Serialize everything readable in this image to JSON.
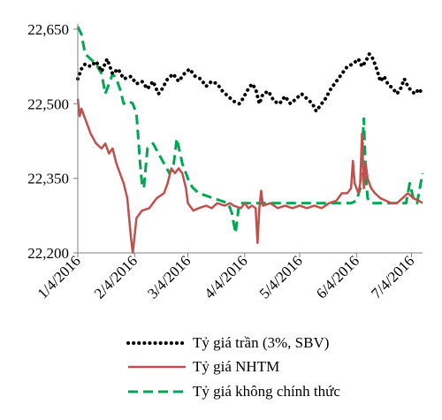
{
  "chart_data": {
    "type": "line",
    "title": "",
    "xlabel": "",
    "ylabel": "",
    "ylim": [
      22200,
      22650
    ],
    "yticks": [
      "22,200",
      "22,350",
      "22,500",
      "22,650"
    ],
    "ytick_values": [
      22200,
      22350,
      22500,
      22650
    ],
    "x_range": [
      "2016-01-04",
      "2016-07-10"
    ],
    "xtick_labels": [
      "1/4/2016",
      "2/4/2016",
      "3/4/2016",
      "4/4/2016",
      "5/4/2016",
      "6/4/2016",
      "7/4/2016"
    ],
    "xtick_dates": [
      "2016-01-04",
      "2016-02-04",
      "2016-03-04",
      "2016-04-04",
      "2016-05-04",
      "2016-06-04",
      "2016-07-04"
    ],
    "grid": false,
    "legend_position": "bottom",
    "series": [
      {
        "name": "Tỷ giá trần (3%, SBV)",
        "color": "#000000",
        "style": "dotted",
        "points": [
          [
            "2016-01-04",
            22550
          ],
          [
            "2016-01-06",
            22570
          ],
          [
            "2016-01-08",
            22580
          ],
          [
            "2016-01-11",
            22575
          ],
          [
            "2016-01-14",
            22585
          ],
          [
            "2016-01-17",
            22565
          ],
          [
            "2016-01-20",
            22590
          ],
          [
            "2016-01-23",
            22560
          ],
          [
            "2016-01-26",
            22570
          ],
          [
            "2016-01-29",
            22550
          ],
          [
            "2016-02-02",
            22555
          ],
          [
            "2016-02-05",
            22540
          ],
          [
            "2016-02-08",
            22545
          ],
          [
            "2016-02-11",
            22530
          ],
          [
            "2016-02-14",
            22545
          ],
          [
            "2016-02-17",
            22520
          ],
          [
            "2016-02-19",
            22530
          ],
          [
            "2016-02-22",
            22550
          ],
          [
            "2016-02-25",
            22560
          ],
          [
            "2016-02-28",
            22545
          ],
          [
            "2016-03-02",
            22560
          ],
          [
            "2016-03-05",
            22570
          ],
          [
            "2016-03-08",
            22555
          ],
          [
            "2016-03-11",
            22550
          ],
          [
            "2016-03-14",
            22535
          ],
          [
            "2016-03-17",
            22545
          ],
          [
            "2016-03-20",
            22540
          ],
          [
            "2016-03-23",
            22525
          ],
          [
            "2016-03-26",
            22515
          ],
          [
            "2016-03-29",
            22505
          ],
          [
            "2016-04-01",
            22500
          ],
          [
            "2016-04-03",
            22510
          ],
          [
            "2016-04-06",
            22530
          ],
          [
            "2016-04-08",
            22540
          ],
          [
            "2016-04-10",
            22530
          ],
          [
            "2016-04-12",
            22500
          ],
          [
            "2016-04-14",
            22520
          ],
          [
            "2016-04-17",
            22525
          ],
          [
            "2016-04-20",
            22505
          ],
          [
            "2016-04-23",
            22500
          ],
          [
            "2016-04-26",
            22515
          ],
          [
            "2016-04-29",
            22500
          ],
          [
            "2016-05-02",
            22510
          ],
          [
            "2016-05-05",
            22520
          ],
          [
            "2016-05-08",
            22510
          ],
          [
            "2016-05-11",
            22500
          ],
          [
            "2016-05-13",
            22485
          ],
          [
            "2016-05-15",
            22495
          ],
          [
            "2016-05-18",
            22510
          ],
          [
            "2016-05-21",
            22530
          ],
          [
            "2016-05-24",
            22545
          ],
          [
            "2016-05-27",
            22560
          ],
          [
            "2016-05-30",
            22575
          ],
          [
            "2016-06-02",
            22580
          ],
          [
            "2016-06-05",
            22590
          ],
          [
            "2016-06-07",
            22575
          ],
          [
            "2016-06-09",
            22585
          ],
          [
            "2016-06-11",
            22600
          ],
          [
            "2016-06-13",
            22590
          ],
          [
            "2016-06-15",
            22570
          ],
          [
            "2016-06-17",
            22545
          ],
          [
            "2016-06-19",
            22555
          ],
          [
            "2016-06-21",
            22540
          ],
          [
            "2016-06-24",
            22530
          ],
          [
            "2016-06-26",
            22520
          ],
          [
            "2016-06-28",
            22530
          ],
          [
            "2016-06-30",
            22550
          ],
          [
            "2016-07-02",
            22535
          ],
          [
            "2016-07-04",
            22525
          ],
          [
            "2016-07-06",
            22520
          ],
          [
            "2016-07-08",
            22530
          ],
          [
            "2016-07-10",
            22520
          ]
        ]
      },
      {
        "name": "Tỷ giá NHTM",
        "color": "#c0504d",
        "style": "solid",
        "points": [
          [
            "2016-01-04",
            22510
          ],
          [
            "2016-01-05",
            22475
          ],
          [
            "2016-01-06",
            22490
          ],
          [
            "2016-01-08",
            22470
          ],
          [
            "2016-01-11",
            22440
          ],
          [
            "2016-01-14",
            22420
          ],
          [
            "2016-01-17",
            22410
          ],
          [
            "2016-01-19",
            22420
          ],
          [
            "2016-01-21",
            22400
          ],
          [
            "2016-01-23",
            22410
          ],
          [
            "2016-01-25",
            22380
          ],
          [
            "2016-01-27",
            22360
          ],
          [
            "2016-01-29",
            22340
          ],
          [
            "2016-01-31",
            22310
          ],
          [
            "2016-02-01",
            22270
          ],
          [
            "2016-02-02",
            22230
          ],
          [
            "2016-02-03",
            22200
          ],
          [
            "2016-02-05",
            22270
          ],
          [
            "2016-02-08",
            22285
          ],
          [
            "2016-02-12",
            22290
          ],
          [
            "2016-02-16",
            22310
          ],
          [
            "2016-02-20",
            22320
          ],
          [
            "2016-02-22",
            22340
          ],
          [
            "2016-02-24",
            22370
          ],
          [
            "2016-02-26",
            22360
          ],
          [
            "2016-02-28",
            22370
          ],
          [
            "2016-03-01",
            22360
          ],
          [
            "2016-03-03",
            22330
          ],
          [
            "2016-03-04",
            22300
          ],
          [
            "2016-03-07",
            22285
          ],
          [
            "2016-03-10",
            22290
          ],
          [
            "2016-03-14",
            22295
          ],
          [
            "2016-03-17",
            22290
          ],
          [
            "2016-03-20",
            22300
          ],
          [
            "2016-03-24",
            22295
          ],
          [
            "2016-03-27",
            22300
          ],
          [
            "2016-03-29",
            22295
          ],
          [
            "2016-04-02",
            22290
          ],
          [
            "2016-04-04",
            22300
          ],
          [
            "2016-04-06",
            22290
          ],
          [
            "2016-04-08",
            22295
          ],
          [
            "2016-04-10",
            22290
          ],
          [
            "2016-04-11",
            22220
          ],
          [
            "2016-04-12",
            22290
          ],
          [
            "2016-04-13",
            22325
          ],
          [
            "2016-04-14",
            22295
          ],
          [
            "2016-04-18",
            22300
          ],
          [
            "2016-04-22",
            22290
          ],
          [
            "2016-04-26",
            22295
          ],
          [
            "2016-04-30",
            22290
          ],
          [
            "2016-05-04",
            22295
          ],
          [
            "2016-05-08",
            22290
          ],
          [
            "2016-05-12",
            22295
          ],
          [
            "2016-05-16",
            22290
          ],
          [
            "2016-05-20",
            22300
          ],
          [
            "2016-05-24",
            22305
          ],
          [
            "2016-05-27",
            22320
          ],
          [
            "2016-05-30",
            22320
          ],
          [
            "2016-06-01",
            22330
          ],
          [
            "2016-06-02",
            22385
          ],
          [
            "2016-06-03",
            22340
          ],
          [
            "2016-06-05",
            22320
          ],
          [
            "2016-06-06",
            22340
          ],
          [
            "2016-06-07",
            22440
          ],
          [
            "2016-06-08",
            22330
          ],
          [
            "2016-06-09",
            22380
          ],
          [
            "2016-06-10",
            22350
          ],
          [
            "2016-06-12",
            22330
          ],
          [
            "2016-06-14",
            22320
          ],
          [
            "2016-06-17",
            22310
          ],
          [
            "2016-06-20",
            22305
          ],
          [
            "2016-06-23",
            22300
          ],
          [
            "2016-06-26",
            22300
          ],
          [
            "2016-06-29",
            22310
          ],
          [
            "2016-07-02",
            22320
          ],
          [
            "2016-07-05",
            22310
          ],
          [
            "2016-07-08",
            22305
          ],
          [
            "2016-07-10",
            22300
          ]
        ]
      },
      {
        "name": "Tỷ giá không chính thức",
        "color": "#00a651",
        "style": "dashed",
        "points": [
          [
            "2016-01-04",
            22655
          ],
          [
            "2016-01-06",
            22640
          ],
          [
            "2016-01-08",
            22600
          ],
          [
            "2016-01-11",
            22590
          ],
          [
            "2016-01-14",
            22580
          ],
          [
            "2016-01-17",
            22560
          ],
          [
            "2016-01-19",
            22520
          ],
          [
            "2016-01-21",
            22540
          ],
          [
            "2016-01-23",
            22560
          ],
          [
            "2016-01-25",
            22550
          ],
          [
            "2016-01-27",
            22530
          ],
          [
            "2016-01-29",
            22500
          ],
          [
            "2016-02-01",
            22505
          ],
          [
            "2016-02-03",
            22500
          ],
          [
            "2016-02-05",
            22480
          ],
          [
            "2016-02-07",
            22380
          ],
          [
            "2016-02-08",
            22340
          ],
          [
            "2016-02-09",
            22330
          ],
          [
            "2016-02-11",
            22410
          ],
          [
            "2016-02-14",
            22420
          ],
          [
            "2016-02-17",
            22400
          ],
          [
            "2016-02-20",
            22380
          ],
          [
            "2016-02-23",
            22360
          ],
          [
            "2016-02-25",
            22370
          ],
          [
            "2016-02-27",
            22430
          ],
          [
            "2016-03-01",
            22380
          ],
          [
            "2016-03-03",
            22360
          ],
          [
            "2016-03-05",
            22340
          ],
          [
            "2016-03-07",
            22330
          ],
          [
            "2016-03-10",
            22320
          ],
          [
            "2016-03-14",
            22315
          ],
          [
            "2016-03-18",
            22310
          ],
          [
            "2016-03-22",
            22305
          ],
          [
            "2016-03-26",
            22300
          ],
          [
            "2016-03-28",
            22280
          ],
          [
            "2016-03-30",
            22240
          ],
          [
            "2016-04-01",
            22300
          ],
          [
            "2016-04-04",
            22300
          ],
          [
            "2016-04-07",
            22300
          ],
          [
            "2016-04-10",
            22300
          ],
          [
            "2016-04-14",
            22300
          ],
          [
            "2016-04-18",
            22300
          ],
          [
            "2016-04-22",
            22300
          ],
          [
            "2016-04-26",
            22300
          ],
          [
            "2016-04-30",
            22300
          ],
          [
            "2016-05-04",
            22300
          ],
          [
            "2016-05-08",
            22300
          ],
          [
            "2016-05-12",
            22300
          ],
          [
            "2016-05-16",
            22300
          ],
          [
            "2016-05-20",
            22300
          ],
          [
            "2016-05-24",
            22300
          ],
          [
            "2016-05-28",
            22300
          ],
          [
            "2016-06-01",
            22300
          ],
          [
            "2016-06-04",
            22305
          ],
          [
            "2016-06-06",
            22330
          ],
          [
            "2016-06-07",
            22400
          ],
          [
            "2016-06-08",
            22470
          ],
          [
            "2016-06-09",
            22360
          ],
          [
            "2016-06-10",
            22310
          ],
          [
            "2016-06-12",
            22300
          ],
          [
            "2016-06-16",
            22300
          ],
          [
            "2016-06-20",
            22300
          ],
          [
            "2016-06-24",
            22300
          ],
          [
            "2016-06-28",
            22300
          ],
          [
            "2016-07-01",
            22300
          ],
          [
            "2016-07-03",
            22340
          ],
          [
            "2016-07-05",
            22310
          ],
          [
            "2016-07-07",
            22300
          ],
          [
            "2016-07-09",
            22340
          ],
          [
            "2016-07-10",
            22360
          ]
        ]
      }
    ]
  }
}
